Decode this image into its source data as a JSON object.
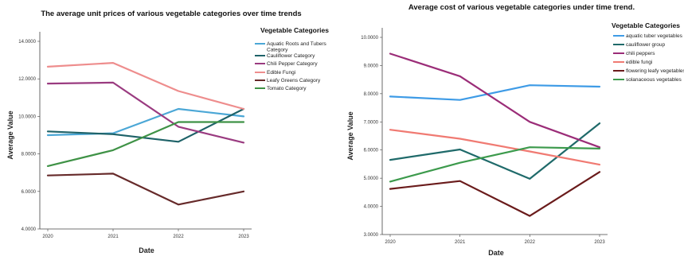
{
  "chart_data": [
    {
      "type": "line",
      "title": "The average unit prices of various vegetable categories over time trends",
      "xlabel": "Date",
      "ylabel": "Average Value",
      "x": [
        "2020",
        "2021",
        "2022",
        "2023"
      ],
      "ylim": [
        4,
        14
      ],
      "yticks": [
        "4.0000",
        "6.0000",
        "8.0000",
        "10.0000",
        "12.0000",
        "14.0000"
      ],
      "legend_title": "Vegetable Categories",
      "legend_position": "right",
      "grid": false,
      "series": [
        {
          "name": "Aquatic Roots and Tubers Category",
          "color": "#4ba7d6",
          "values": [
            9.0,
            9.1,
            10.4,
            10.0
          ]
        },
        {
          "name": "Cauliflower Category",
          "color": "#1e6268",
          "values": [
            9.2,
            9.05,
            8.65,
            10.4
          ]
        },
        {
          "name": "Chili Pepper Category",
          "color": "#9a3b80",
          "values": [
            11.75,
            11.8,
            9.45,
            8.6
          ]
        },
        {
          "name": "Edible Fungi",
          "color": "#ee8d8d",
          "values": [
            12.65,
            12.85,
            11.35,
            10.4
          ]
        },
        {
          "name": "Leafy Greens Category",
          "color": "#662a2a",
          "values": [
            6.85,
            6.95,
            5.3,
            6.0
          ]
        },
        {
          "name": "Tomato Category",
          "color": "#3f9246",
          "values": [
            7.35,
            8.2,
            9.7,
            9.7
          ]
        }
      ]
    },
    {
      "type": "line",
      "title": "Average cost of various vegetable categories under time trend.",
      "xlabel": "Date",
      "ylabel": "Average Value",
      "x": [
        "2020",
        "2021",
        "2022",
        "2023"
      ],
      "ylim": [
        3,
        10
      ],
      "yticks": [
        "3.0000",
        "4.0000",
        "5.0000",
        "6.0000",
        "7.0000",
        "8.0000",
        "9.0000",
        "10.0000"
      ],
      "legend_title": "Vegetable Categories",
      "legend_position": "right",
      "grid": false,
      "series": [
        {
          "name": "aquatic tuber vegetables",
          "color": "#3e9be6",
          "values": [
            7.9,
            7.78,
            8.3,
            8.25
          ]
        },
        {
          "name": "cauliflower group",
          "color": "#1f6a6a",
          "values": [
            5.65,
            6.02,
            4.98,
            6.95
          ]
        },
        {
          "name": "chili peppers",
          "color": "#9b2d78",
          "values": [
            9.42,
            8.62,
            7.0,
            6.1
          ]
        },
        {
          "name": "edible fungi",
          "color": "#f07a72",
          "values": [
            6.72,
            6.4,
            5.95,
            5.48
          ]
        },
        {
          "name": "flowering leafy vegetables",
          "color": "#6a1b1b",
          "values": [
            4.62,
            4.9,
            3.66,
            5.22
          ]
        },
        {
          "name": "solanaceous vegetables",
          "color": "#3c9a4c",
          "values": [
            4.88,
            5.55,
            6.1,
            6.05
          ]
        }
      ]
    }
  ]
}
